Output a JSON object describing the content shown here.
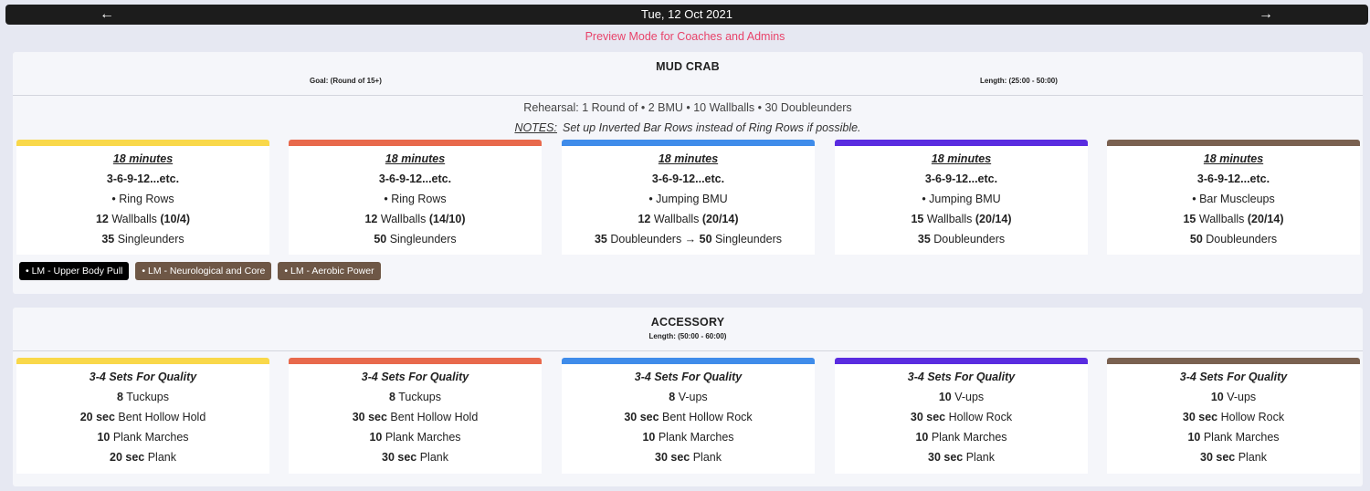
{
  "nav": {
    "date": "Tue, 12 Oct 2021",
    "prev_icon": "←",
    "next_icon": "→"
  },
  "preview_text": "Preview Mode for Coaches and Admins",
  "colors": {
    "yellow": "#f9d84a",
    "orange": "#e8694c",
    "blue": "#3f8cea",
    "purple": "#5a2ce0",
    "brown": "#7a6150",
    "tag_black": "#000000",
    "tag_brown": "#6e5746",
    "preview": "#e8436a"
  },
  "workout": {
    "title": "MUD CRAB",
    "goal": "Goal: (Round of 15+)",
    "length": "Length: (25:00 - 50:00)",
    "rehearsal": "Rehearsal: 1 Round of • 2 BMU • 10 Wallballs • 30 Doubleunders",
    "notes_label": "NOTES:",
    "notes_text": "Set up Inverted Bar Rows instead of Ring Rows if possible.",
    "columns": [
      {
        "time": "18 minutes",
        "scheme": "3-6-9-12...etc.",
        "move1": "• Ring Rows",
        "wb_num": "12",
        "wb_label": " Wallballs ",
        "wb_weight": "(10/4)",
        "jr_num": "35",
        "jr_label": " Singleunders",
        "jr_extra": "",
        "jr_num2": "",
        "jr_label2": ""
      },
      {
        "time": "18 minutes",
        "scheme": "3-6-9-12...etc.",
        "move1": "• Ring Rows",
        "wb_num": "12",
        "wb_label": " Wallballs ",
        "wb_weight": "(14/10)",
        "jr_num": "50",
        "jr_label": " Singleunders",
        "jr_extra": "",
        "jr_num2": "",
        "jr_label2": ""
      },
      {
        "time": "18 minutes",
        "scheme": "3-6-9-12...etc.",
        "move1": "• Jumping BMU",
        "wb_num": "12",
        "wb_label": " Wallballs ",
        "wb_weight": "(20/14)",
        "jr_num": "35",
        "jr_label": " Doubleunders",
        "jr_extra": " → ",
        "jr_num2": "50",
        "jr_label2": " Singleunders"
      },
      {
        "time": "18 minutes",
        "scheme": "3-6-9-12...etc.",
        "move1": "• Jumping BMU",
        "wb_num": "15",
        "wb_label": " Wallballs ",
        "wb_weight": "(20/14)",
        "jr_num": "35",
        "jr_label": " Doubleunders",
        "jr_extra": "",
        "jr_num2": "",
        "jr_label2": ""
      },
      {
        "time": "18 minutes",
        "scheme": "3-6-9-12...etc.",
        "move1": "• Bar Muscleups",
        "wb_num": "15",
        "wb_label": " Wallballs ",
        "wb_weight": "(20/14)",
        "jr_num": "50",
        "jr_label": " Doubleunders",
        "jr_extra": "",
        "jr_num2": "",
        "jr_label2": ""
      }
    ],
    "tags": [
      "• LM - Upper Body Pull",
      "• LM - Neurological and Core",
      "• LM - Aerobic Power"
    ]
  },
  "accessory": {
    "title": "ACCESSORY",
    "length": "Length: (50:00 - 60:00)",
    "columns": [
      {
        "header": "3-4 Sets For Quality",
        "l1_num": "8",
        "l1_label": " Tuckups",
        "l2_num": "20 sec",
        "l2_label": " Bent Hollow Hold",
        "l3_num": "10",
        "l3_label": " Plank Marches",
        "l4_num": "20 sec",
        "l4_label": " Plank"
      },
      {
        "header": "3-4 Sets For Quality",
        "l1_num": "8",
        "l1_label": " Tuckups",
        "l2_num": "30 sec",
        "l2_label": " Bent Hollow Hold",
        "l3_num": "10",
        "l3_label": " Plank Marches",
        "l4_num": "30 sec",
        "l4_label": " Plank"
      },
      {
        "header": "3-4 Sets For Quality",
        "l1_num": "8",
        "l1_label": " V-ups",
        "l2_num": "30 sec",
        "l2_label": " Bent Hollow Rock",
        "l3_num": "10",
        "l3_label": " Plank Marches",
        "l4_num": "30 sec",
        "l4_label": " Plank"
      },
      {
        "header": "3-4 Sets For Quality",
        "l1_num": "10",
        "l1_label": " V-ups",
        "l2_num": "30 sec",
        "l2_label": " Hollow Rock",
        "l3_num": "10",
        "l3_label": " Plank Marches",
        "l4_num": "30 sec",
        "l4_label": " Plank"
      },
      {
        "header": "3-4 Sets For Quality",
        "l1_num": "10",
        "l1_label": " V-ups",
        "l2_num": "30 sec",
        "l2_label": " Hollow Rock",
        "l3_num": "10",
        "l3_label": " Plank Marches",
        "l4_num": "30 sec",
        "l4_label": " Plank"
      }
    ]
  }
}
